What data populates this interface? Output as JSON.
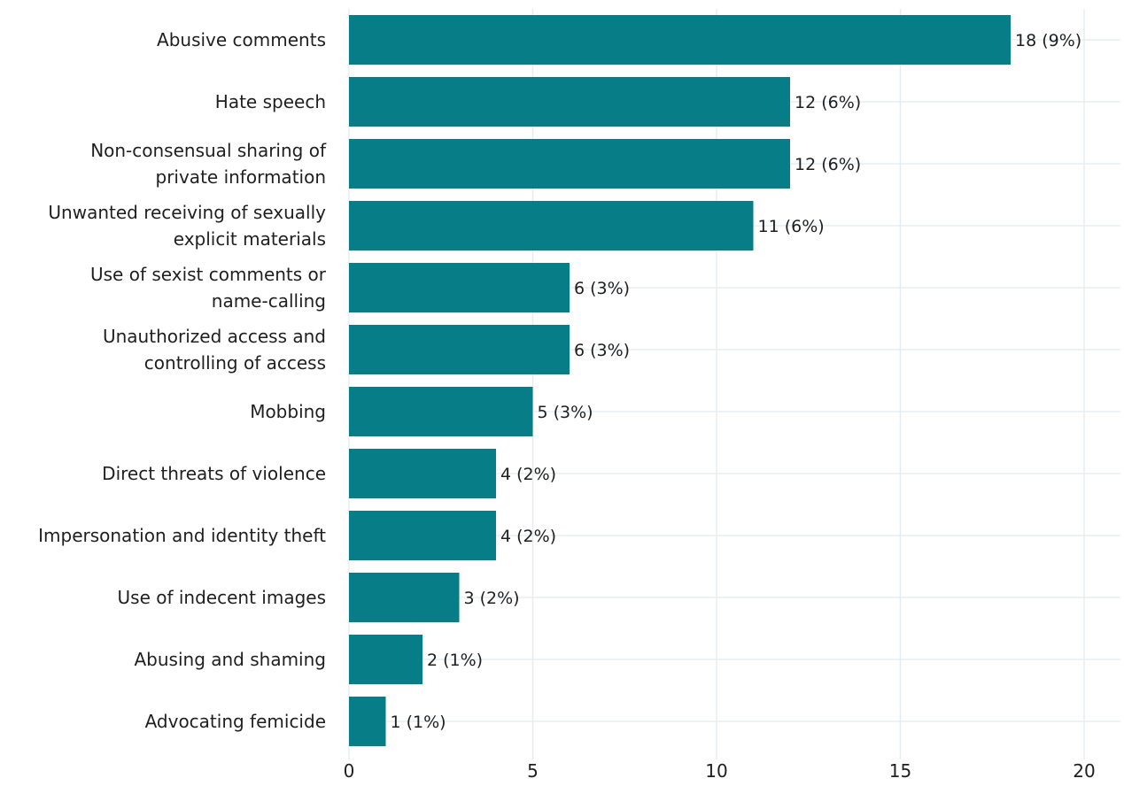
{
  "chart_data": {
    "type": "bar",
    "orientation": "horizontal",
    "categories": [
      "Abusive comments",
      "Hate speech",
      "Non-consensual sharing of private information",
      "Unwanted receiving of sexually explicit materials",
      "Use of sexist comments or name-calling",
      "Unauthorized access and controlling of access",
      "Mobbing",
      "Direct threats of violence",
      "Impersonation and identity theft",
      "Use of indecent images",
      "Abusing and shaming",
      "Advocating femicide"
    ],
    "category_lines": [
      [
        "Abusive comments"
      ],
      [
        "Hate speech"
      ],
      [
        "Non-consensual sharing of",
        "private information"
      ],
      [
        "Unwanted receiving of sexually",
        "explicit materials"
      ],
      [
        "Use of sexist comments or",
        "name-calling"
      ],
      [
        "Unauthorized access and",
        "controlling of access"
      ],
      [
        "Mobbing"
      ],
      [
        "Direct threats of violence"
      ],
      [
        "Impersonation and identity theft"
      ],
      [
        "Use of indecent images"
      ],
      [
        "Abusing and shaming"
      ],
      [
        "Advocating femicide"
      ]
    ],
    "values": [
      18,
      12,
      12,
      11,
      6,
      6,
      5,
      4,
      4,
      3,
      2,
      1
    ],
    "data_labels": [
      "18 (9%)",
      "12 (6%)",
      "12 (6%)",
      "11 (6%)",
      "6 (3%)",
      "6 (3%)",
      "5 (3%)",
      "4 (2%)",
      "4 (2%)",
      "3 (2%)",
      "2 (1%)",
      "1 (1%)"
    ],
    "xticks": [
      0,
      5,
      10,
      15,
      20
    ],
    "xlim": [
      0,
      20.5
    ],
    "title": "",
    "xlabel": "",
    "ylabel": "",
    "grid": true,
    "legend": "none",
    "colors": {
      "bar": "#077d87",
      "grid": "#e6edf2",
      "text": "#1f1f1f"
    }
  }
}
